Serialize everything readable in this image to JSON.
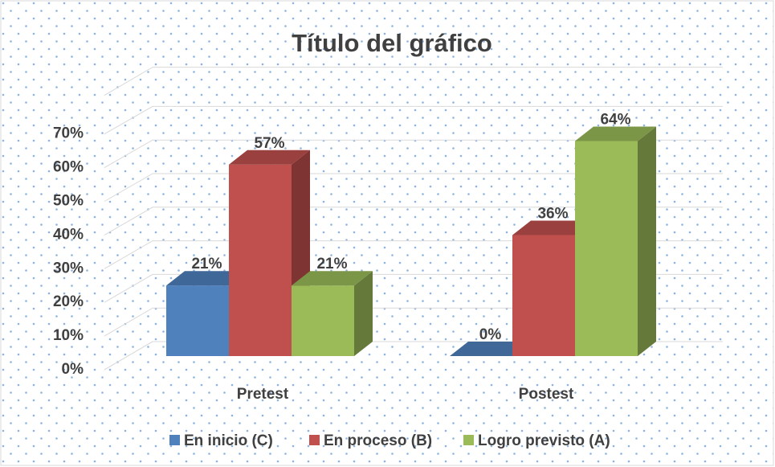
{
  "chart_data": {
    "type": "bar3d",
    "title": "Título del gráfico",
    "categories": [
      "Pretest",
      "Postest"
    ],
    "series": [
      {
        "name": "En inicio (C)",
        "color": "#4f81bd",
        "values": [
          21,
          0
        ],
        "value_labels": [
          "21%",
          "0%"
        ]
      },
      {
        "name": "En proceso (B)",
        "color": "#c0504d",
        "values": [
          57,
          36
        ],
        "value_labels": [
          "57%",
          "36%"
        ]
      },
      {
        "name": "Logro previsto (A)",
        "color": "#9bbb59",
        "values": [
          21,
          64
        ],
        "value_labels": [
          "21%",
          "64%"
        ]
      }
    ],
    "ylim": [
      0,
      80
    ],
    "yticks": [
      {
        "value": 0,
        "label": "0%"
      },
      {
        "value": 10,
        "label": "10%"
      },
      {
        "value": 20,
        "label": "20%"
      },
      {
        "value": 30,
        "label": "30%"
      },
      {
        "value": 40,
        "label": "40%"
      },
      {
        "value": 50,
        "label": "50%"
      },
      {
        "value": 60,
        "label": "60%"
      },
      {
        "value": 70,
        "label": "70%"
      }
    ],
    "grid": true,
    "legend": "bottom"
  }
}
